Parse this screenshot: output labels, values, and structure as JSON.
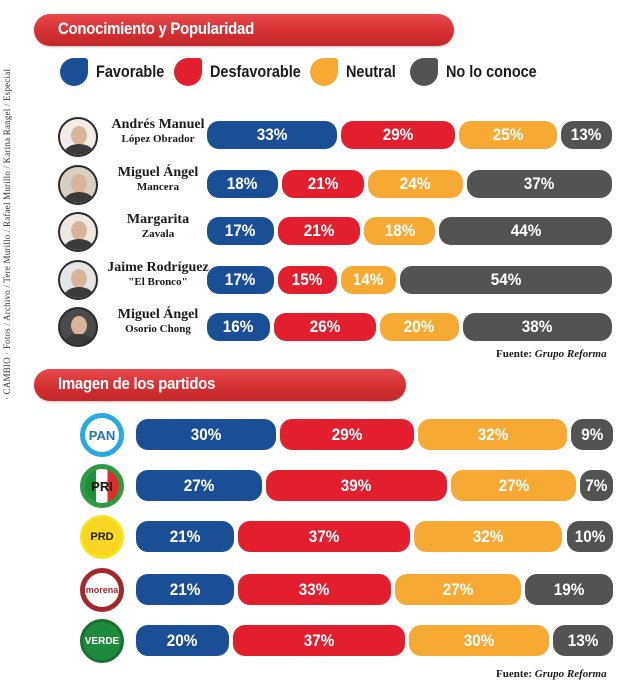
{
  "credit": "· CAMBIO · Fotos / Archivo / Tere Murillo / Rafael Murillo / Karina Rangel / Especial",
  "colors": {
    "favorable": "#1a4f96",
    "desfavorable": "#e31e2d",
    "neutral": "#f6aa34",
    "no_lo_conoce": "#535353",
    "banner": "#d9302f"
  },
  "legend": [
    {
      "key": "favorable",
      "label": "Favorable"
    },
    {
      "key": "desfavorable",
      "label": "Desfavorable"
    },
    {
      "key": "neutral",
      "label": "Neutral"
    },
    {
      "key": "no_lo_conoce",
      "label": "No lo conoce"
    }
  ],
  "chart_data": [
    {
      "type": "bar",
      "stacked": true,
      "orientation": "horizontal",
      "title": "Conocimiento y Popularidad",
      "categories": [
        {
          "first": "Andrés Manuel",
          "last": "López Obrador"
        },
        {
          "first": "Miguel Ángel",
          "last": "Mancera"
        },
        {
          "first": "Margarita",
          "last": "Zavala"
        },
        {
          "first": "Jaime Rodríguez",
          "last": "\"El Bronco\""
        },
        {
          "first": "Miguel Ángel",
          "last": "Osorio Chong"
        }
      ],
      "series": [
        {
          "name": "Favorable",
          "values": [
            33,
            18,
            17,
            17,
            16
          ]
        },
        {
          "name": "Desfavorable",
          "values": [
            29,
            21,
            21,
            15,
            26
          ]
        },
        {
          "name": "Neutral",
          "values": [
            25,
            24,
            18,
            14,
            20
          ]
        },
        {
          "name": "No lo conoce",
          "values": [
            13,
            37,
            44,
            54,
            38
          ]
        }
      ],
      "unit": "%",
      "source_label": "Fuente:",
      "source_name": "Grupo Reforma"
    },
    {
      "type": "bar",
      "stacked": true,
      "orientation": "horizontal",
      "title": "Imagen de los partidos",
      "categories": [
        "PAN",
        "PRI",
        "PRD",
        "morena",
        "VERDE"
      ],
      "series": [
        {
          "name": "Favorable",
          "values": [
            30,
            27,
            21,
            21,
            20
          ]
        },
        {
          "name": "Desfavorable",
          "values": [
            29,
            39,
            37,
            33,
            37
          ]
        },
        {
          "name": "Neutral",
          "values": [
            32,
            27,
            32,
            27,
            30
          ]
        },
        {
          "name": "No lo conoce",
          "values": [
            9,
            7,
            10,
            19,
            13
          ]
        }
      ],
      "unit": "%",
      "source_label": "Fuente:",
      "source_name": "Grupo Reforma"
    }
  ]
}
